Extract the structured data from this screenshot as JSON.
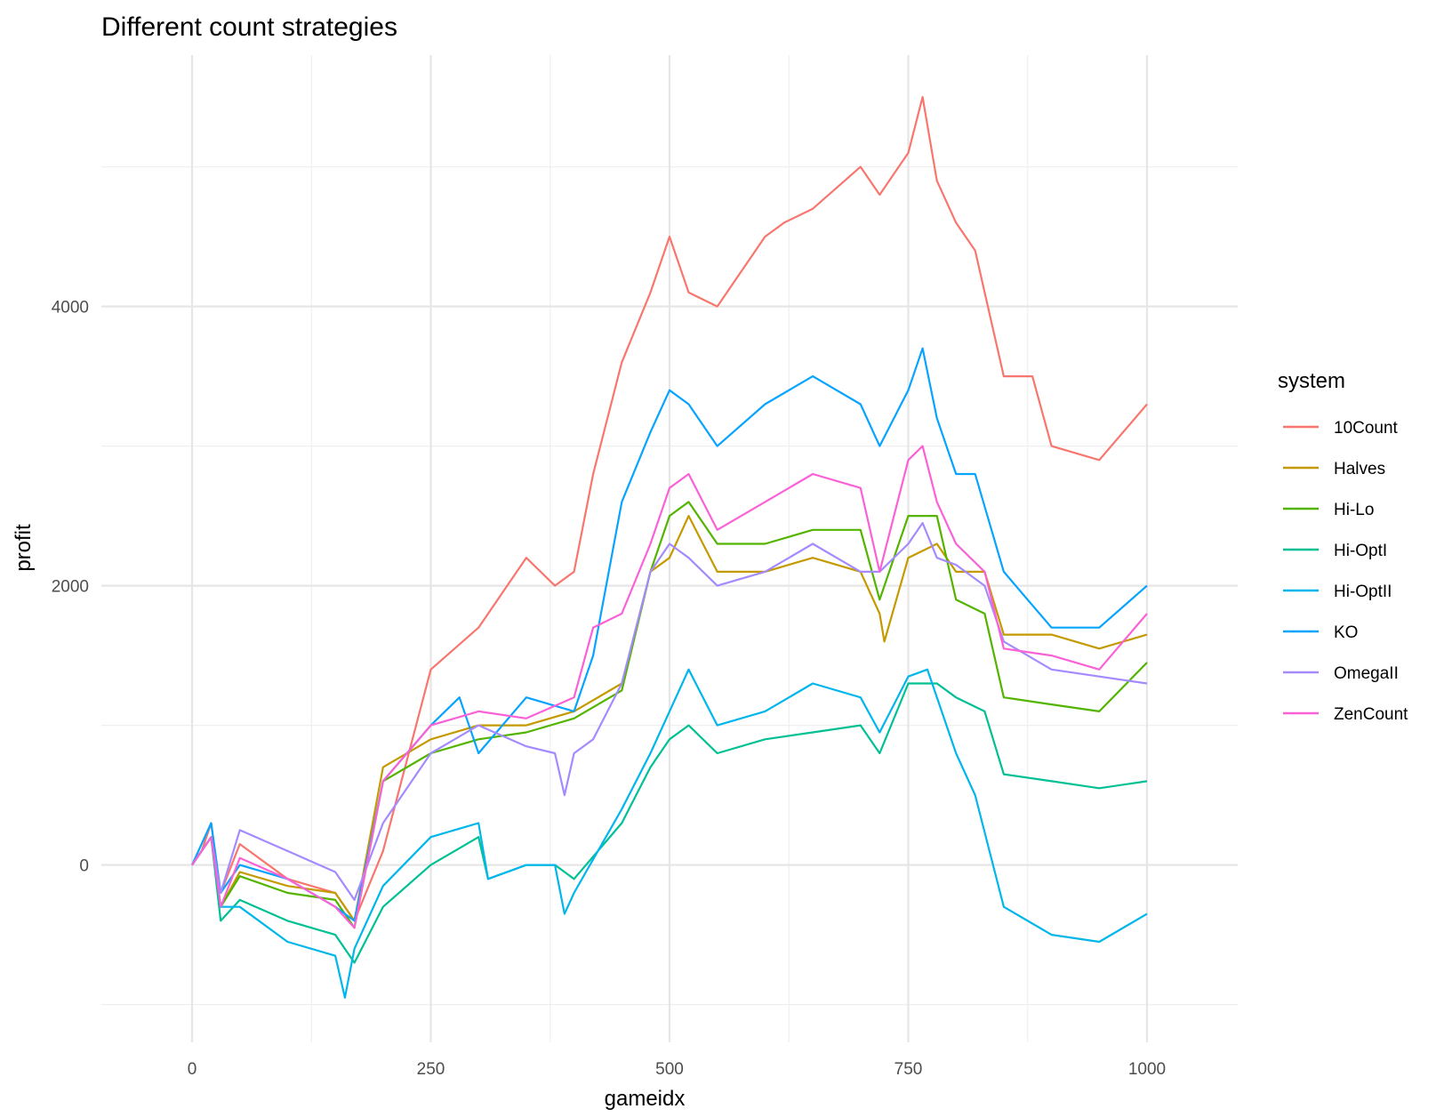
{
  "chart_data": {
    "type": "line",
    "title": "Different count strategies",
    "xlabel": "gameidx",
    "ylabel": "profit",
    "xlim": [
      -95,
      1095
    ],
    "ylim": [
      -1270,
      5800
    ],
    "x_ticks": [
      0,
      250,
      500,
      750,
      1000
    ],
    "x_minor_ticks": [
      125,
      375,
      625,
      875
    ],
    "y_ticks": [
      0,
      2000,
      4000
    ],
    "y_minor_ticks": [
      -1000,
      1000,
      3000,
      5000
    ],
    "grid": true,
    "legend": {
      "title": "system",
      "position": "right"
    },
    "series": [
      {
        "name": "10Count",
        "color": "#F8766D",
        "x": [
          0,
          10,
          20,
          30,
          50,
          100,
          150,
          170,
          200,
          250,
          300,
          350,
          380,
          400,
          420,
          450,
          480,
          500,
          520,
          550,
          600,
          620,
          650,
          700,
          720,
          750,
          765,
          780,
          800,
          820,
          850,
          880,
          900,
          950,
          1000
        ],
        "y": [
          0,
          100,
          300,
          -200,
          150,
          -100,
          -200,
          -400,
          100,
          1400,
          1700,
          2200,
          2000,
          2100,
          2800,
          3600,
          4100,
          4500,
          4100,
          4000,
          4500,
          4600,
          4700,
          5000,
          4800,
          5100,
          5500,
          4900,
          4600,
          4400,
          3500,
          3500,
          3000,
          2900,
          3300
        ]
      },
      {
        "name": "Halves",
        "color": "#C49A00",
        "x": [
          0,
          20,
          30,
          50,
          100,
          150,
          170,
          200,
          250,
          300,
          350,
          400,
          450,
          480,
          500,
          520,
          550,
          600,
          650,
          700,
          720,
          725,
          750,
          780,
          800,
          830,
          850,
          900,
          950,
          1000
        ],
        "y": [
          0,
          200,
          -300,
          -50,
          -150,
          -200,
          -400,
          700,
          900,
          1000,
          1000,
          1100,
          1300,
          2100,
          2200,
          2500,
          2100,
          2100,
          2200,
          2100,
          1800,
          1600,
          2200,
          2300,
          2100,
          2100,
          1650,
          1650,
          1550,
          1650
        ]
      },
      {
        "name": "Hi-Lo",
        "color": "#53B400",
        "x": [
          0,
          20,
          30,
          50,
          100,
          150,
          170,
          200,
          250,
          300,
          350,
          400,
          450,
          480,
          500,
          520,
          550,
          600,
          650,
          700,
          720,
          750,
          780,
          800,
          830,
          850,
          900,
          950,
          1000
        ],
        "y": [
          0,
          200,
          -300,
          -80,
          -200,
          -250,
          -450,
          600,
          800,
          900,
          950,
          1050,
          1250,
          2100,
          2500,
          2600,
          2300,
          2300,
          2400,
          2400,
          1900,
          2500,
          2500,
          1900,
          1800,
          1200,
          1150,
          1100,
          1450
        ]
      },
      {
        "name": "Hi-OptI",
        "color": "#00C094",
        "x": [
          0,
          20,
          30,
          50,
          100,
          150,
          170,
          200,
          250,
          300,
          310,
          350,
          380,
          400,
          450,
          480,
          500,
          520,
          550,
          600,
          650,
          700,
          720,
          750,
          780,
          800,
          830,
          850,
          900,
          950,
          1000
        ],
        "y": [
          0,
          200,
          -400,
          -250,
          -400,
          -500,
          -700,
          -300,
          0,
          200,
          -100,
          0,
          0,
          -100,
          300,
          700,
          900,
          1000,
          800,
          900,
          950,
          1000,
          800,
          1300,
          1300,
          1200,
          1100,
          650,
          600,
          550,
          600
        ]
      },
      {
        "name": "Hi-OptII",
        "color": "#00B6EB",
        "x": [
          0,
          20,
          30,
          50,
          100,
          150,
          160,
          170,
          200,
          250,
          300,
          310,
          350,
          380,
          390,
          400,
          450,
          480,
          500,
          520,
          550,
          600,
          650,
          700,
          720,
          750,
          770,
          800,
          820,
          850,
          900,
          950,
          1000
        ],
        "y": [
          0,
          200,
          -300,
          -300,
          -550,
          -650,
          -950,
          -600,
          -150,
          200,
          300,
          -100,
          0,
          0,
          -350,
          -200,
          400,
          800,
          1100,
          1400,
          1000,
          1100,
          1300,
          1200,
          950,
          1350,
          1400,
          800,
          500,
          -300,
          -500,
          -550,
          -350
        ]
      },
      {
        "name": "KO",
        "color": "#06A4FF",
        "x": [
          0,
          20,
          30,
          50,
          100,
          150,
          170,
          200,
          250,
          280,
          300,
          350,
          400,
          420,
          450,
          480,
          500,
          520,
          550,
          600,
          650,
          700,
          720,
          750,
          765,
          780,
          800,
          820,
          850,
          900,
          950,
          1000
        ],
        "y": [
          0,
          300,
          -200,
          0,
          -100,
          -300,
          -400,
          600,
          1000,
          1200,
          800,
          1200,
          1100,
          1500,
          2600,
          3100,
          3400,
          3300,
          3000,
          3300,
          3500,
          3300,
          3000,
          3400,
          3700,
          3200,
          2800,
          2800,
          2100,
          1700,
          1700,
          2000
        ]
      },
      {
        "name": "OmegaII",
        "color": "#A58AFF",
        "x": [
          0,
          20,
          30,
          50,
          100,
          150,
          170,
          200,
          250,
          300,
          350,
          380,
          390,
          400,
          420,
          450,
          480,
          500,
          520,
          550,
          600,
          650,
          700,
          720,
          750,
          765,
          780,
          800,
          830,
          850,
          900,
          950,
          1000
        ],
        "y": [
          0,
          200,
          -200,
          250,
          100,
          -50,
          -250,
          300,
          800,
          1000,
          850,
          800,
          500,
          800,
          900,
          1300,
          2100,
          2300,
          2200,
          2000,
          2100,
          2300,
          2100,
          2100,
          2300,
          2450,
          2200,
          2150,
          2000,
          1600,
          1400,
          1350,
          1300
        ]
      },
      {
        "name": "ZenCount",
        "color": "#FB61D7",
        "x": [
          0,
          20,
          30,
          50,
          100,
          150,
          170,
          200,
          250,
          300,
          350,
          400,
          420,
          450,
          480,
          500,
          520,
          550,
          600,
          650,
          700,
          720,
          750,
          765,
          780,
          800,
          830,
          850,
          900,
          950,
          1000
        ],
        "y": [
          0,
          200,
          -300,
          50,
          -100,
          -300,
          -450,
          600,
          1000,
          1100,
          1050,
          1200,
          1700,
          1800,
          2300,
          2700,
          2800,
          2400,
          2600,
          2800,
          2700,
          2100,
          2900,
          3000,
          2600,
          2300,
          2100,
          1550,
          1500,
          1400,
          1800
        ]
      }
    ]
  }
}
